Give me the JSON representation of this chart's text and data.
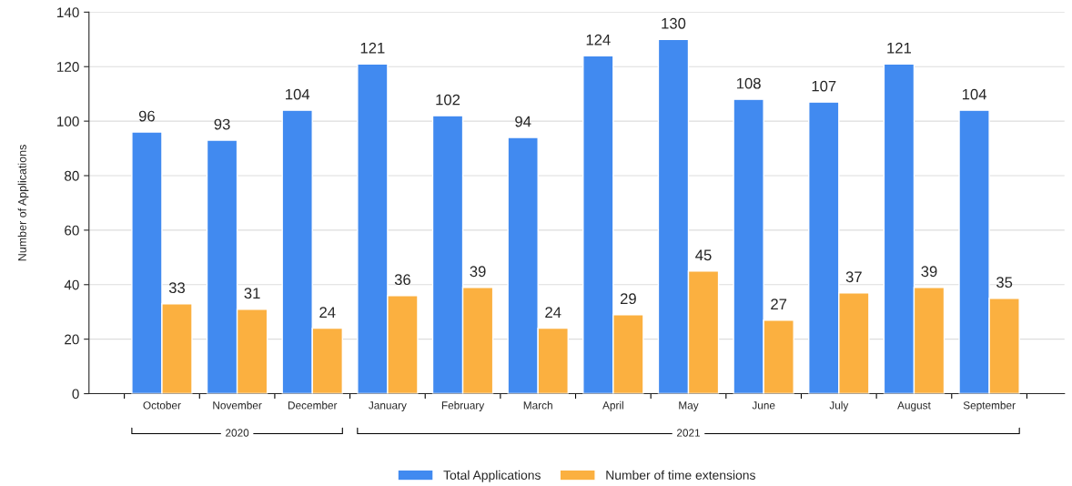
{
  "chart_data": {
    "type": "bar",
    "ylabel": "Number of Applications",
    "categories": [
      "October",
      "November",
      "December",
      "January",
      "February",
      "March",
      "April",
      "May",
      "June",
      "July",
      "August",
      "September"
    ],
    "series": [
      {
        "name": "Total Applications",
        "color": "#418af0",
        "values": [
          96,
          93,
          104,
          121,
          102,
          94,
          124,
          130,
          108,
          107,
          121,
          104
        ]
      },
      {
        "name": "Number of time extensions",
        "color": "#fbb040",
        "values": [
          33,
          31,
          24,
          36,
          39,
          24,
          29,
          45,
          27,
          37,
          39,
          35
        ]
      }
    ],
    "ylim": [
      0,
      140
    ],
    "yticks": [
      0,
      20,
      40,
      60,
      80,
      100,
      120,
      140
    ],
    "grid": "y",
    "legend": "bottom",
    "data_labels": true,
    "annotations": [
      "2020",
      "2021"
    ]
  }
}
